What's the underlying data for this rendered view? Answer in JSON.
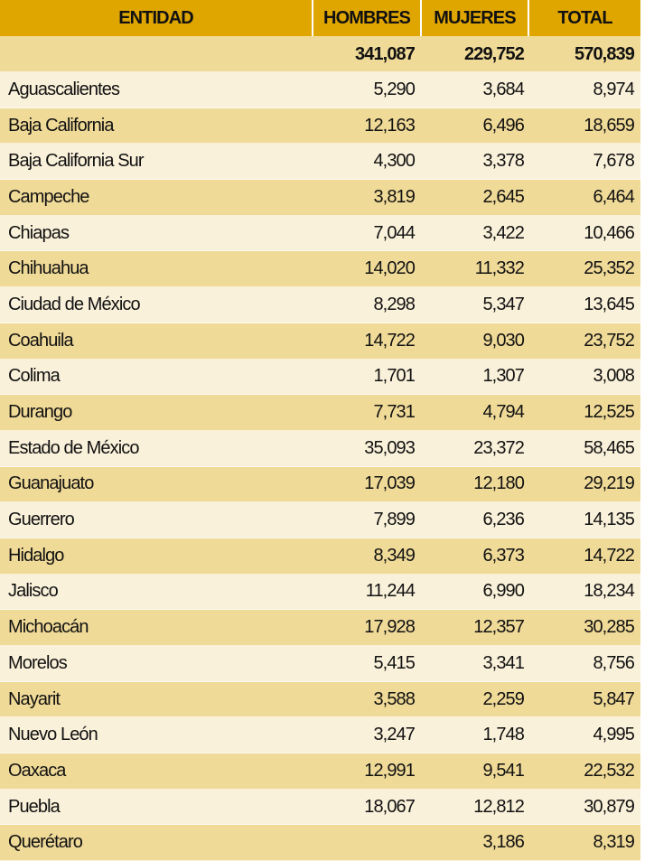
{
  "table": {
    "headers": [
      "ENTIDAD",
      "HOMBRES",
      "MUJERES",
      "TOTAL"
    ],
    "totals": [
      "",
      "341,087",
      "229,752",
      "570,839"
    ],
    "rows": [
      [
        "Aguascalientes",
        "5,290",
        "3,684",
        "8,974"
      ],
      [
        "Baja California",
        "12,163",
        "6,496",
        "18,659"
      ],
      [
        "Baja California Sur",
        "4,300",
        "3,378",
        "7,678"
      ],
      [
        "Campeche",
        "3,819",
        "2,645",
        "6,464"
      ],
      [
        "Chiapas",
        "7,044",
        "3,422",
        "10,466"
      ],
      [
        "Chihuahua",
        "14,020",
        "11,332",
        "25,352"
      ],
      [
        "Ciudad de México",
        "8,298",
        "5,347",
        "13,645"
      ],
      [
        "Coahuila",
        "14,722",
        "9,030",
        "23,752"
      ],
      [
        "Colima",
        "1,701",
        "1,307",
        "3,008"
      ],
      [
        "Durango",
        "7,731",
        "4,794",
        "12,525"
      ],
      [
        "Estado de México",
        "35,093",
        "23,372",
        "58,465"
      ],
      [
        "Guanajuato",
        "17,039",
        "12,180",
        "29,219"
      ],
      [
        "Guerrero",
        "7,899",
        "6,236",
        "14,135"
      ],
      [
        "Hidalgo",
        "8,349",
        "6,373",
        "14,722"
      ],
      [
        "Jalisco",
        "11,244",
        "6,990",
        "18,234"
      ],
      [
        "Michoacán",
        "17,928",
        "12,357",
        "30,285"
      ],
      [
        "Morelos",
        "5,415",
        "3,341",
        "8,756"
      ],
      [
        "Nayarit",
        "3,588",
        "2,259",
        "5,847"
      ],
      [
        "Nuevo León",
        "3,247",
        "1,748",
        "4,995"
      ],
      [
        "Oaxaca",
        "12,991",
        "9,541",
        "22,532"
      ],
      [
        "Puebla",
        "18,067",
        "12,812",
        "30,879"
      ],
      [
        "Querétaro",
        "",
        "3,186",
        "8,319"
      ]
    ]
  },
  "colors": {
    "header": "#e0a600",
    "row_light": "#faf1da",
    "row_dark": "#f0da98"
  }
}
